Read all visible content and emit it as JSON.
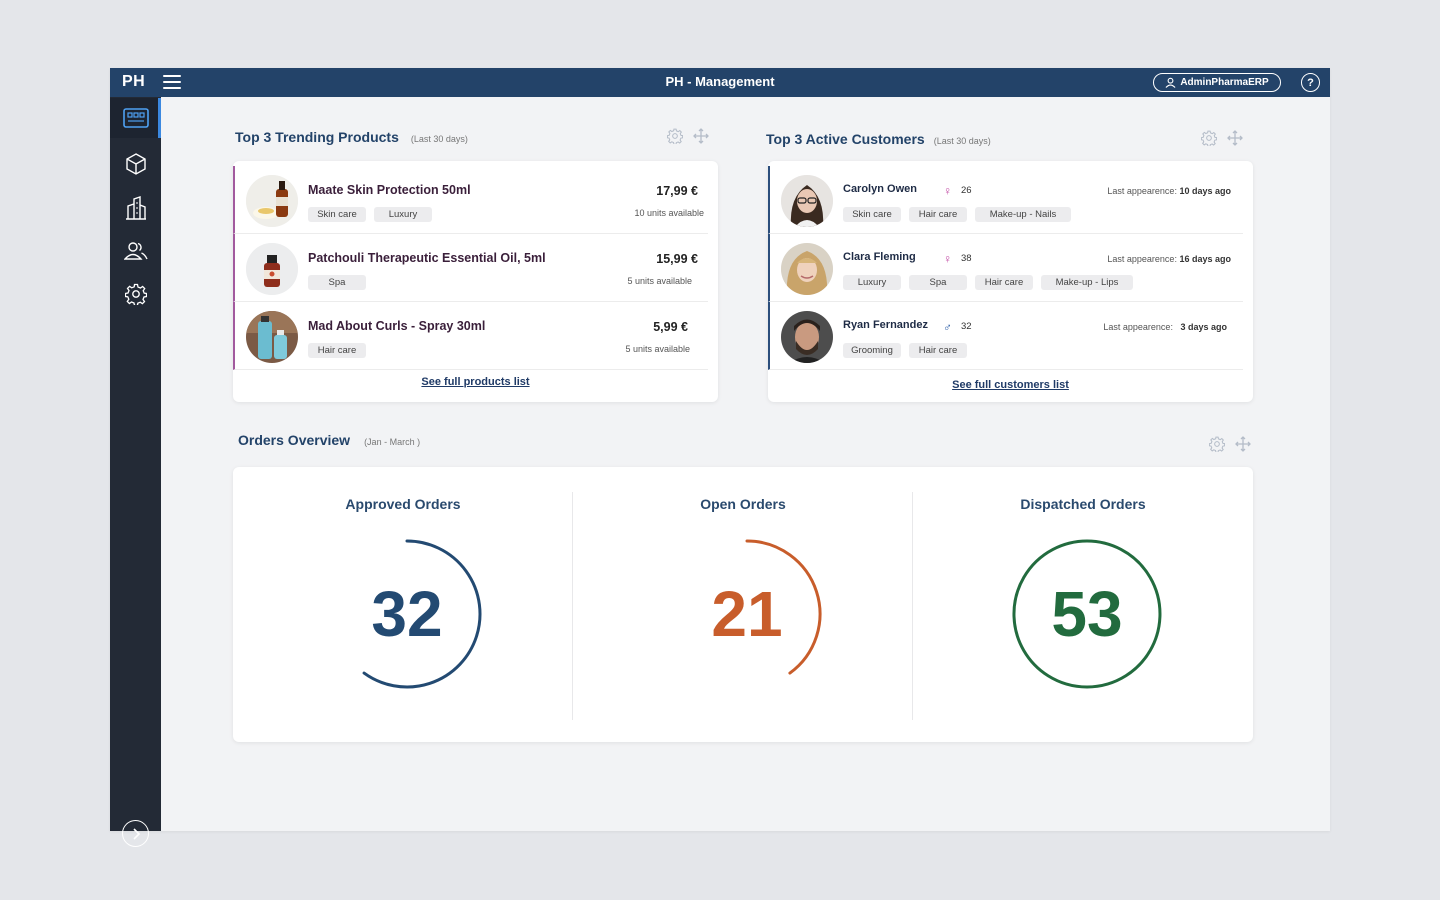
{
  "topbar": {
    "brand": "PH",
    "title": "PH - Management",
    "user": "AdminPharmaERP",
    "help": "?"
  },
  "sidebar": {
    "items": [
      {
        "name": "dashboard",
        "icon": "dashboard-icon",
        "active": true
      },
      {
        "name": "products",
        "icon": "box-icon"
      },
      {
        "name": "pharmacy",
        "icon": "building-icon"
      },
      {
        "name": "customers",
        "icon": "users-icon"
      },
      {
        "name": "settings",
        "icon": "gear-icon"
      }
    ]
  },
  "products": {
    "title": "Top 3 Trending Products",
    "subtitle": "(Last 30 days)",
    "items": [
      {
        "name": "Maate Skin Protection 50ml",
        "tags": [
          "Skin care",
          "Luxury"
        ],
        "price": "17,99 €",
        "stock": "10 units available"
      },
      {
        "name": "Patchouli Therapeutic Essential Oil, 5ml",
        "tags": [
          "Spa"
        ],
        "price": "15,99 €",
        "stock": "5 units available"
      },
      {
        "name": "Mad About Curls - Spray 30ml",
        "tags": [
          "Hair care"
        ],
        "price": "5,99 €",
        "stock": "5 units available"
      }
    ],
    "link": "See full products list"
  },
  "customers": {
    "title": "Top 3 Active Customers",
    "subtitle": "(Last 30 days)",
    "last_label": "Last appearence:",
    "items": [
      {
        "name": "Carolyn Owen",
        "gender": "♀",
        "age": "26",
        "tags": [
          "Skin care",
          "Hair care",
          "Make-up - Nails"
        ],
        "last": "10 days ago"
      },
      {
        "name": "Clara Fleming",
        "gender": "♀",
        "age": "38",
        "tags": [
          "Luxury",
          "Spa",
          "Hair care",
          "Make-up - Lips"
        ],
        "last": "16 days ago"
      },
      {
        "name": "Ryan Fernandez",
        "gender": "♂",
        "age": "32",
        "tags": [
          "Grooming",
          "Hair care"
        ],
        "last": "3 days ago"
      }
    ],
    "link": "See full customers list"
  },
  "orders": {
    "title": "Orders Overview",
    "subtitle": "(Jan - March )",
    "items": [
      {
        "label": "Approved Orders",
        "value": "32",
        "progress": 0.6,
        "color": "#234a72"
      },
      {
        "label": "Open Orders",
        "value": "21",
        "progress": 0.4,
        "color": "#c85d2b"
      },
      {
        "label": "Dispatched Orders",
        "value": "53",
        "progress": 1.0,
        "color": "#226b3e"
      }
    ]
  },
  "colors": {
    "primary": "#234369",
    "sidebar": "#232a36",
    "accent": "#3b88e0",
    "product_accent": "#a25a9e",
    "female": "#c24ca6",
    "male": "#2d5fa8"
  }
}
